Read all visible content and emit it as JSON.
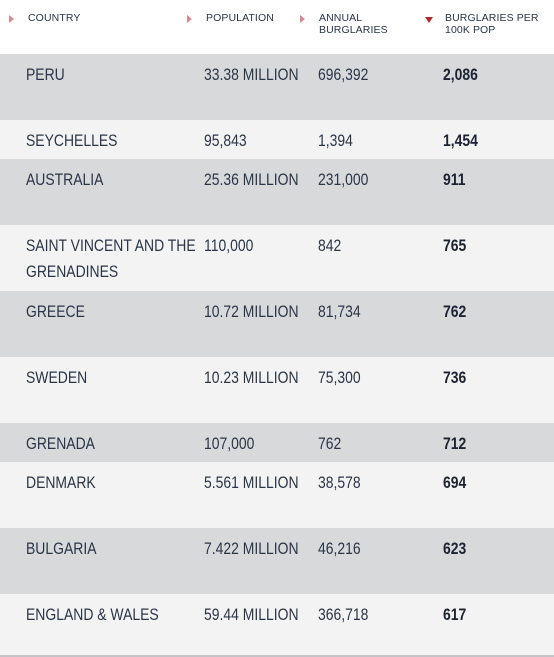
{
  "headers": {
    "country": "COUNTRY",
    "population": "POPULATION",
    "burglaries": "ANNUAL BURGLARIES",
    "rate": "BURGLARIES PER 100K POP"
  },
  "sort": {
    "column": "rate",
    "direction": "descending"
  },
  "colors": {
    "odd_row": "#d8d9db",
    "even_row": "#f3f3f3",
    "sort_arrow_active": "#b5262d",
    "sort_arrow_inactive": "#d98b8b",
    "text": "#2a3547"
  },
  "rows": [
    {
      "country": "PERU",
      "population": "33.38 MILLION",
      "burglaries": "696,392",
      "rate": "2,086"
    },
    {
      "country": "SEYCHELLES",
      "population": "95,843",
      "burglaries": "1,394",
      "rate": "1,454"
    },
    {
      "country": "AUSTRALIA",
      "population": "25.36 MILLION",
      "burglaries": "231,000",
      "rate": "911"
    },
    {
      "country": "SAINT VINCENT AND THE GRENADINES",
      "population": "110,000",
      "burglaries": "842",
      "rate": "765"
    },
    {
      "country": "GREECE",
      "population": "10.72 MILLION",
      "burglaries": "81,734",
      "rate": "762"
    },
    {
      "country": "SWEDEN",
      "population": "10.23 MILLION",
      "burglaries": "75,300",
      "rate": "736"
    },
    {
      "country": "GRENADA",
      "population": "107,000",
      "burglaries": "762",
      "rate": "712"
    },
    {
      "country": "DENMARK",
      "population": "5.561 MILLION",
      "burglaries": "38,578",
      "rate": "694"
    },
    {
      "country": "BULGARIA",
      "population": "7.422 MILLION",
      "burglaries": "46,216",
      "rate": "623"
    },
    {
      "country": "ENGLAND & WALES",
      "population": "59.44 MILLION",
      "burglaries": "366,718",
      "rate": "617"
    }
  ]
}
